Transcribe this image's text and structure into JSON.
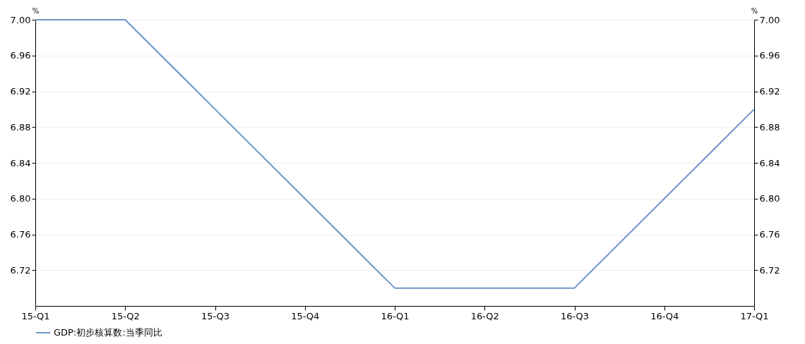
{
  "chart_data": {
    "type": "line",
    "ylabel": "%",
    "y2label": "%",
    "categories": [
      "15-Q1",
      "15-Q2",
      "15-Q3",
      "15-Q4",
      "16-Q1",
      "16-Q2",
      "16-Q3",
      "16-Q4",
      "17-Q1"
    ],
    "series": [
      {
        "name": "GDP:初步核算数:当季同比",
        "color": "#6f93c8",
        "values": [
          7.0,
          7.0,
          6.9,
          6.8,
          6.7,
          6.7,
          6.7,
          6.8,
          6.9
        ]
      }
    ],
    "ylim": [
      6.68,
      7.0
    ],
    "yticks": [
      {
        "value": 6.72,
        "label": "6.72"
      },
      {
        "value": 6.76,
        "label": "6.76"
      },
      {
        "value": 6.8,
        "label": "6.80"
      },
      {
        "value": 6.84,
        "label": "6.84"
      },
      {
        "value": 6.88,
        "label": "6.88"
      },
      {
        "value": 6.92,
        "label": "6.92"
      },
      {
        "value": 6.96,
        "label": "6.96"
      },
      {
        "value": 7.0,
        "label": "7.00"
      }
    ],
    "y2lim": [
      6.68,
      7.0
    ],
    "y2ticks": [
      {
        "value": 6.72,
        "label": "6.72"
      },
      {
        "value": 6.76,
        "label": "6.76"
      },
      {
        "value": 6.8,
        "label": "6.80"
      },
      {
        "value": 6.84,
        "label": "6.84"
      },
      {
        "value": 6.88,
        "label": "6.88"
      },
      {
        "value": 6.92,
        "label": "6.92"
      },
      {
        "value": 6.96,
        "label": "6.96"
      },
      {
        "value": 7.0,
        "label": "7.00"
      }
    ],
    "grid": "y",
    "legend": "bottom"
  }
}
